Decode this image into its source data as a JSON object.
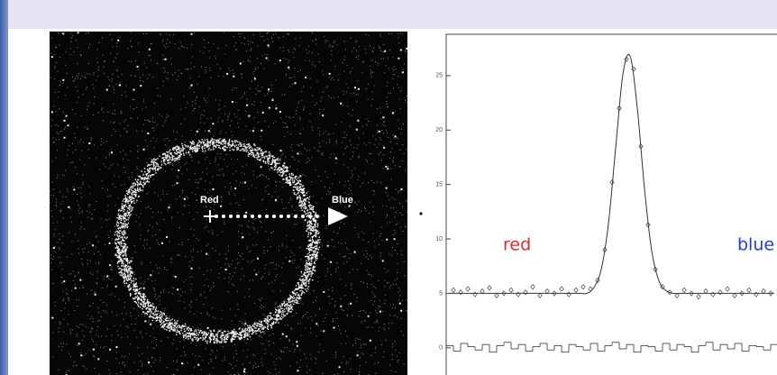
{
  "image": {
    "labels": [
      "Red",
      "Blue"
    ]
  },
  "chart_data": {
    "type": "line",
    "xlim": [
      -1,
      92
    ],
    "ylim": [
      -2.5,
      28.8
    ],
    "yticks": [
      0,
      5,
      10,
      15,
      20,
      25
    ],
    "series": [
      {
        "type": "line",
        "color": "#333333",
        "x": [
          0,
          2,
          4,
          6,
          8,
          10,
          12,
          14,
          16,
          18,
          20,
          22,
          24,
          26,
          28,
          30,
          32,
          34,
          36,
          38,
          40,
          42,
          44,
          46,
          48,
          50,
          52,
          54,
          56,
          58,
          60,
          62,
          64,
          66,
          68,
          70,
          72,
          74,
          76,
          78,
          80,
          82,
          84,
          86,
          88,
          90
        ],
        "values": [
          5,
          5,
          5,
          5,
          5,
          5,
          5,
          5,
          5,
          5,
          5,
          5,
          5,
          5,
          5,
          5,
          5,
          5,
          5,
          5,
          5.55,
          7.2,
          11.4,
          18.35,
          25.1,
          26.8,
          22.05,
          14.6,
          8.9,
          6.15,
          5.25,
          5,
          5,
          5,
          5,
          5,
          5,
          5,
          5,
          5,
          5,
          5,
          5,
          5,
          5,
          5
        ]
      },
      {
        "type": "scatter",
        "color": "#444444",
        "x": [
          1,
          3,
          5,
          7,
          9,
          11,
          13,
          15,
          17,
          19,
          21,
          23,
          25,
          27,
          29,
          31,
          33,
          35,
          37,
          39,
          41,
          43,
          45,
          47,
          49,
          51,
          53,
          55,
          57,
          59,
          61,
          63,
          65,
          67,
          69,
          71,
          73,
          75,
          77,
          79,
          81,
          83,
          85,
          87,
          89
        ],
        "values": [
          5.3,
          5.1,
          5.4,
          4.9,
          5.2,
          5.5,
          4.8,
          5.0,
          5.3,
          4.9,
          5.1,
          5.6,
          4.8,
          5.2,
          5.0,
          5.4,
          4.9,
          5.3,
          5.6,
          5.4,
          6.2,
          9.0,
          15.2,
          22.0,
          26.5,
          25.6,
          18.5,
          11.3,
          7.2,
          5.6,
          5.1,
          4.8,
          5.3,
          5.0,
          4.7,
          5.2,
          4.9,
          5.1,
          5.4,
          4.8,
          5.0,
          5.3,
          4.9,
          5.2,
          5.0
        ]
      },
      {
        "type": "step",
        "color": "#333333",
        "x": [
          0,
          2,
          4,
          6,
          8,
          10,
          12,
          14,
          16,
          18,
          20,
          22,
          24,
          26,
          28,
          30,
          32,
          34,
          36,
          38,
          40,
          42,
          44,
          46,
          48,
          50,
          52,
          54,
          56,
          58,
          60,
          62,
          64,
          66,
          68,
          70,
          72,
          74,
          76,
          78,
          80,
          82,
          84,
          86,
          88,
          90
        ],
        "values": [
          0.2,
          -0.3,
          0.4,
          0.1,
          -0.2,
          0.3,
          -0.4,
          0.2,
          0.5,
          -0.1,
          0.3,
          -0.3,
          0.1,
          0.4,
          -0.2,
          0.2,
          -0.4,
          0.3,
          0.1,
          -0.2,
          0.4,
          -0.3,
          0.2,
          0.5,
          -0.1,
          0.3,
          -0.4,
          0.2,
          0.1,
          -0.3,
          0.4,
          -0.2,
          0.3,
          0.1,
          -0.4,
          0.2,
          0.5,
          -0.2,
          0.3,
          -0.1,
          0.4,
          -0.3,
          0.2,
          0.1,
          -0.2,
          0.3
        ]
      }
    ],
    "annotations": [
      {
        "text": "red",
        "color": "#e8262a"
      },
      {
        "text": "blue",
        "color": "#1f3fd0"
      }
    ]
  }
}
